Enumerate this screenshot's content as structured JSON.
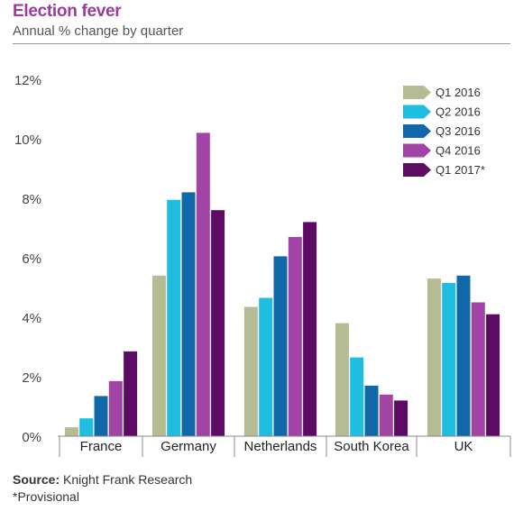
{
  "header": {
    "title": "Election fever",
    "subtitle": "Annual % change by quarter"
  },
  "footer": {
    "source_label": "Source:",
    "source_text": " Knight Frank Research",
    "note": "*Provisional"
  },
  "chart_data": {
    "type": "bar",
    "title": "Election fever",
    "subtitle": "Annual % change by quarter",
    "ylim": [
      0,
      12
    ],
    "yticks": [
      0,
      2,
      4,
      6,
      8,
      10,
      12
    ],
    "ytick_labels": [
      "0%",
      "2%",
      "4%",
      "6%",
      "8%",
      "10%",
      "12%"
    ],
    "grid": false,
    "legend_position": "top-right",
    "categories": [
      "France",
      "Germany",
      "Netherlands",
      "South Korea",
      "UK"
    ],
    "series": [
      {
        "name": "Q1 2016",
        "color": "#b5bc94",
        "values": [
          0.3,
          5.4,
          4.35,
          3.8,
          5.3
        ]
      },
      {
        "name": "Q2 2016",
        "color": "#1fbde0",
        "values": [
          0.6,
          7.95,
          4.65,
          2.65,
          5.15
        ]
      },
      {
        "name": "Q3 2016",
        "color": "#1068a8",
        "values": [
          1.35,
          8.2,
          6.05,
          1.7,
          5.4
        ]
      },
      {
        "name": "Q4 2016",
        "color": "#a244a6",
        "values": [
          1.85,
          10.2,
          6.7,
          1.4,
          4.5
        ]
      },
      {
        "name": "Q1 2017*",
        "color": "#5e0b63",
        "values": [
          2.85,
          7.6,
          7.2,
          1.2,
          4.1
        ]
      }
    ]
  }
}
